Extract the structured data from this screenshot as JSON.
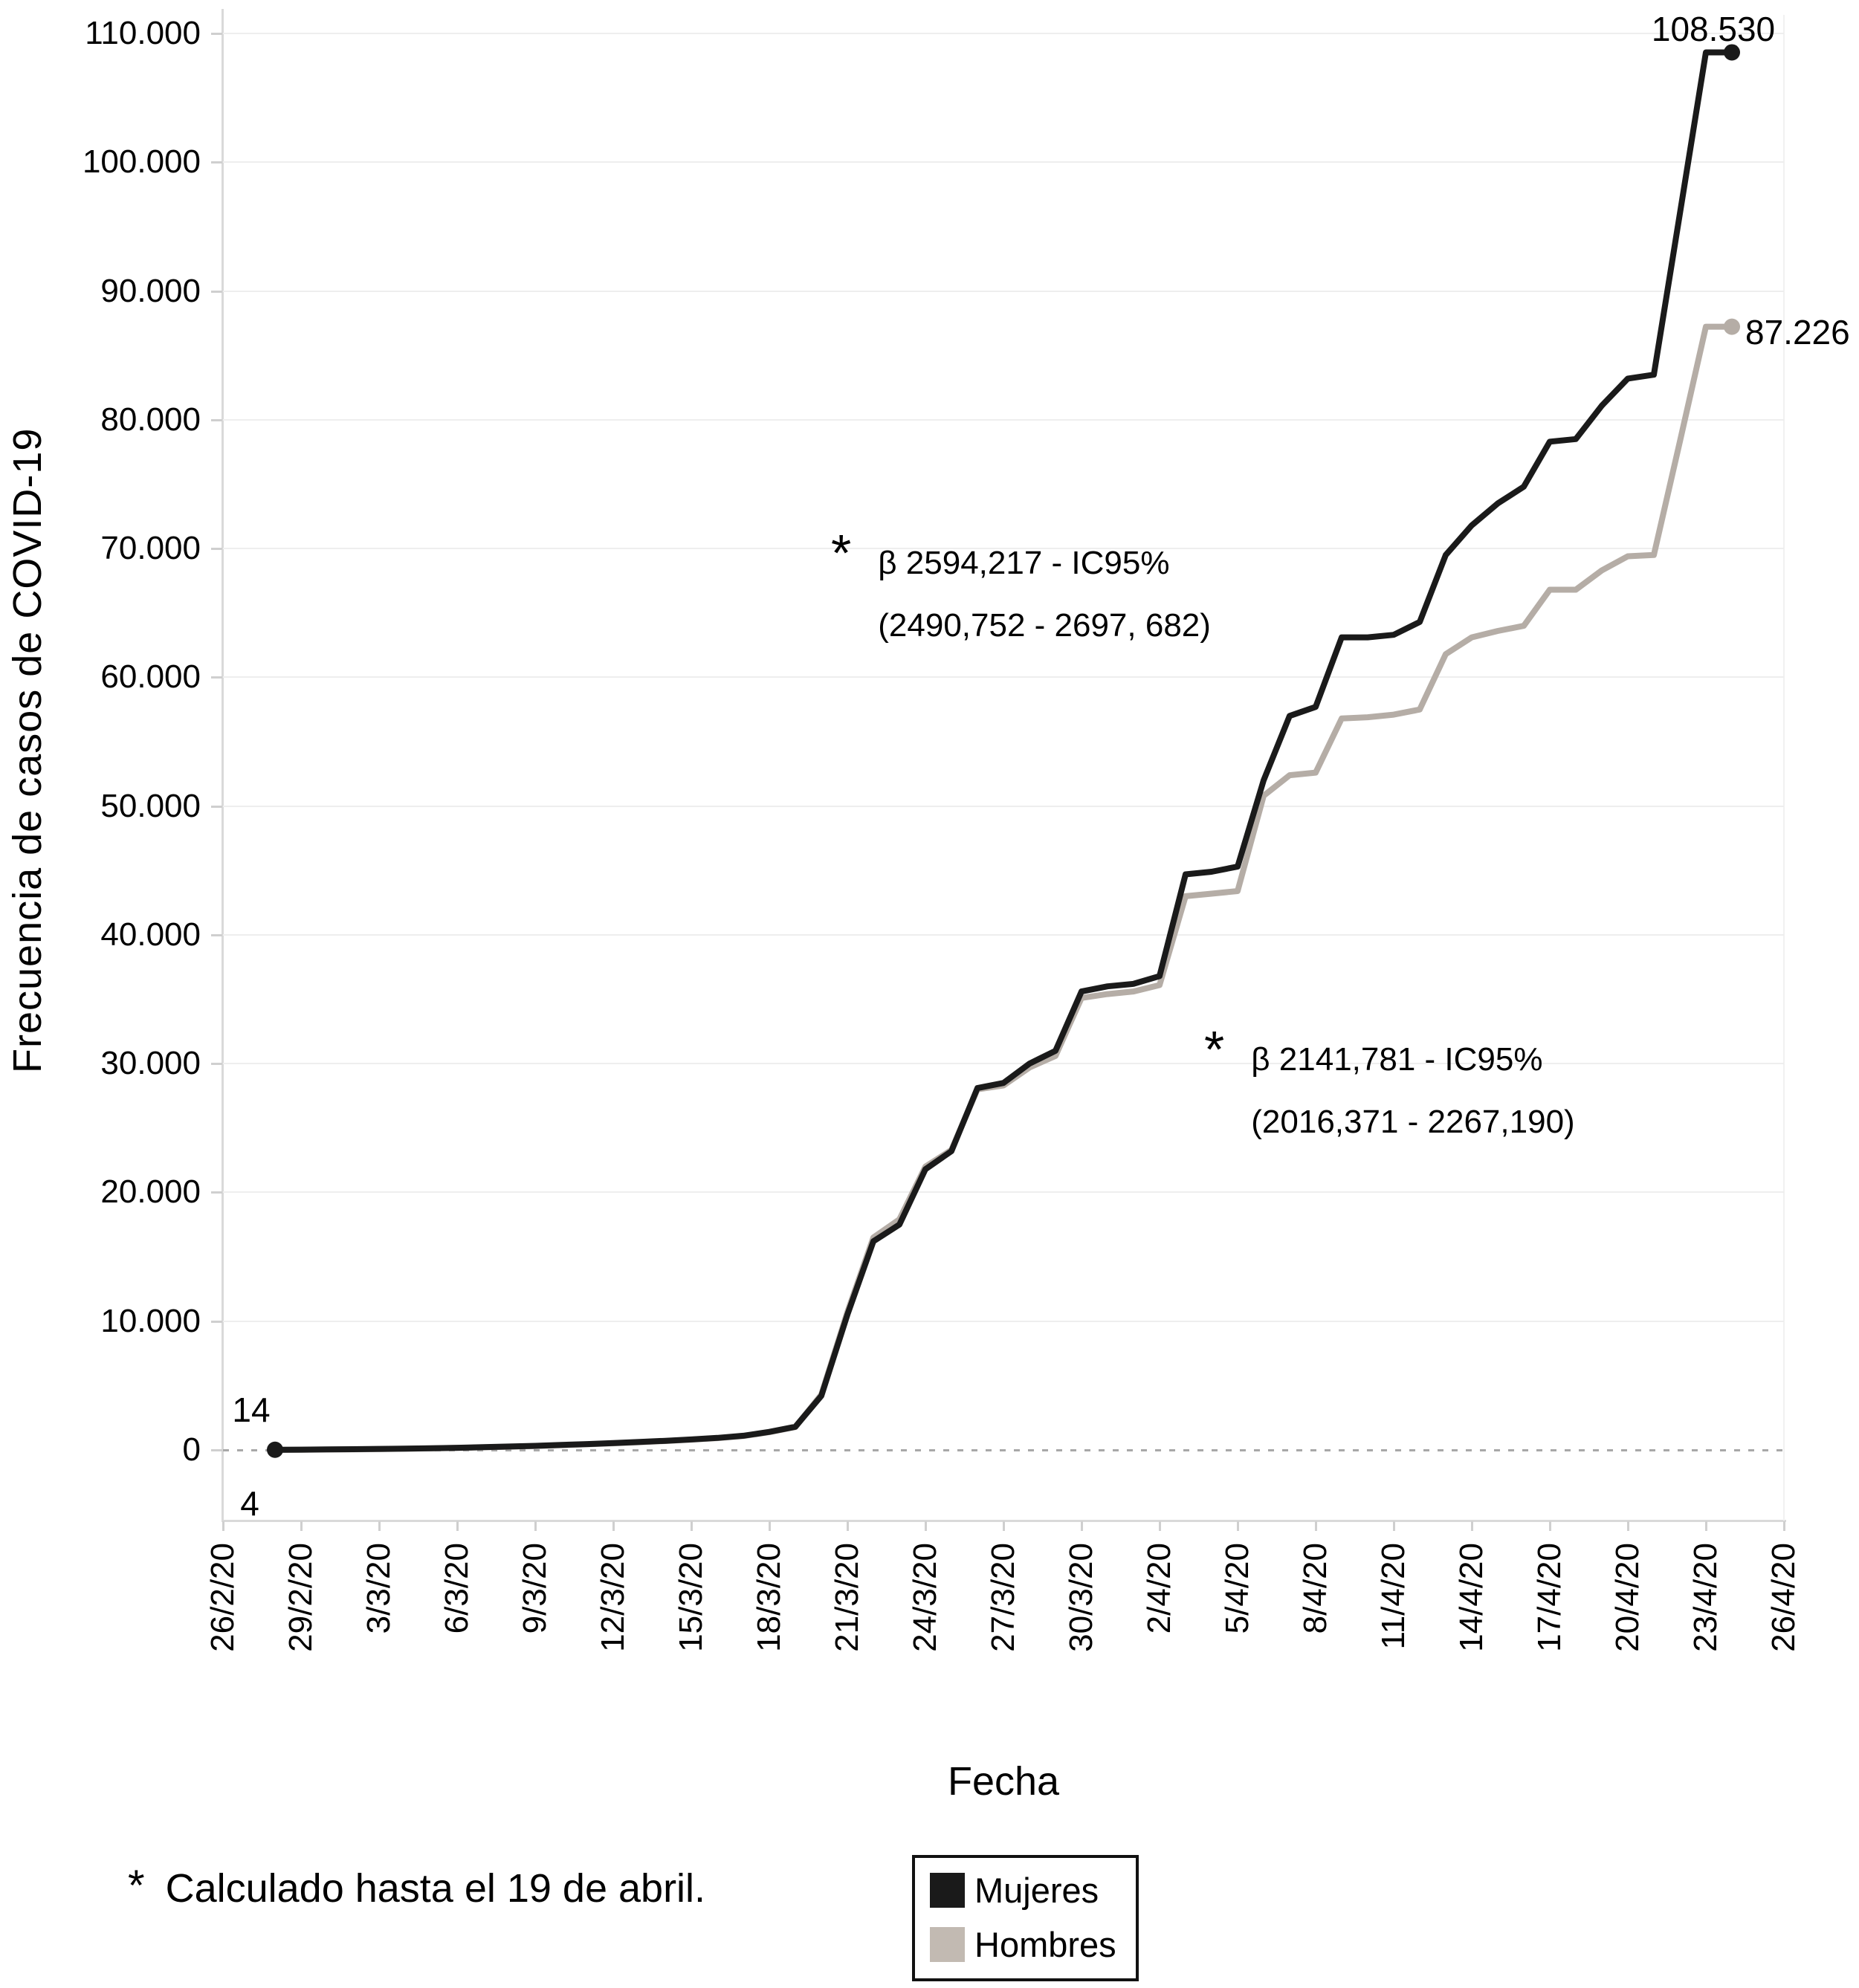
{
  "figure": {
    "annotations": [
      {
        "symbol": "*",
        "line1": "β 2594,217 - IC95%",
        "line2": "(2490,752 - 2697, 682)"
      },
      {
        "symbol": "*",
        "line1": "β 2141,781 - IC95%",
        "line2": "(2016,371 - 2267,190)"
      }
    ],
    "footnote_symbol": "*",
    "footnote_text": "Calculado hasta el 19 de abril."
  },
  "legend": {
    "items": [
      {
        "label": "Mujeres",
        "color": "#1a1a1a"
      },
      {
        "label": "Hombres",
        "color": "#c2bab2"
      }
    ]
  },
  "chart_data": {
    "type": "line",
    "title": "",
    "xlabel": "Fecha",
    "ylabel": "Frecuencia de casos de COVID-19",
    "ylim": [
      0,
      110000
    ],
    "grid": "horizontal",
    "legend_position": "bottom",
    "yticks": [
      0,
      10000,
      20000,
      30000,
      40000,
      50000,
      60000,
      70000,
      80000,
      90000,
      100000,
      110000
    ],
    "ytick_labels": [
      "0",
      "10.000",
      "20.000",
      "30.000",
      "40.000",
      "50.000",
      "60.000",
      "70.000",
      "80.000",
      "90.000",
      "100.000",
      "110.000"
    ],
    "xticks": [
      "26/2/20",
      "29/2/20",
      "3/3/20",
      "6/3/20",
      "9/3/20",
      "12/3/20",
      "15/3/20",
      "18/3/20",
      "21/3/20",
      "24/3/20",
      "27/3/20",
      "30/3/20",
      "2/4/20",
      "5/4/20",
      "8/4/20",
      "11/4/20",
      "14/4/20",
      "17/4/20",
      "20/4/20",
      "23/4/20",
      "26/4/20"
    ],
    "x": [
      "28/2/20",
      "29/2/20",
      "1/3/20",
      "2/3/20",
      "3/3/20",
      "4/3/20",
      "5/3/20",
      "6/3/20",
      "7/3/20",
      "8/3/20",
      "9/3/20",
      "10/3/20",
      "11/3/20",
      "12/3/20",
      "13/3/20",
      "14/3/20",
      "15/3/20",
      "16/3/20",
      "17/3/20",
      "18/3/20",
      "19/3/20",
      "20/3/20",
      "21/3/20",
      "22/3/20",
      "23/3/20",
      "24/3/20",
      "25/3/20",
      "26/3/20",
      "27/3/20",
      "28/3/20",
      "29/3/20",
      "30/3/20",
      "31/3/20",
      "1/4/20",
      "2/4/20",
      "3/4/20",
      "4/4/20",
      "5/4/20",
      "6/4/20",
      "7/4/20",
      "8/4/20",
      "9/4/20",
      "10/4/20",
      "11/4/20",
      "12/4/20",
      "13/4/20",
      "14/4/20",
      "15/4/20",
      "16/4/20",
      "17/4/20",
      "18/4/20",
      "19/4/20",
      "20/4/20",
      "21/4/20",
      "22/4/20",
      "23/4/20",
      "24/4/20"
    ],
    "series": [
      {
        "name": "Mujeres",
        "color": "#1a1a1a",
        "values": [
          14,
          25,
          40,
          58,
          80,
          105,
          135,
          170,
          215,
          265,
          320,
          385,
          455,
          530,
          615,
          710,
          815,
          935,
          1100,
          1400,
          1800,
          4200,
          10500,
          16200,
          17500,
          21800,
          23200,
          28100,
          28500,
          30000,
          31000,
          35600,
          36000,
          36200,
          36800,
          44700,
          44900,
          45300,
          52000,
          57000,
          57700,
          63100,
          63100,
          63300,
          64300,
          69500,
          71800,
          73500,
          74800,
          78300,
          78500,
          81100,
          83200,
          83500,
          96000,
          108530,
          108530
        ]
      },
      {
        "name": "Hombres",
        "color": "#b5ada6",
        "values": [
          4,
          15,
          28,
          45,
          65,
          90,
          120,
          155,
          200,
          250,
          305,
          370,
          440,
          515,
          600,
          695,
          800,
          920,
          1080,
          1380,
          1780,
          4300,
          10700,
          16500,
          17900,
          22000,
          23300,
          28000,
          28300,
          29700,
          30600,
          35100,
          35400,
          35600,
          36100,
          43000,
          43200,
          43400,
          50800,
          52400,
          52600,
          56800,
          56900,
          57100,
          57500,
          61800,
          63100,
          63600,
          64000,
          66800,
          66800,
          68300,
          69400,
          69500,
          78300,
          87226,
          87226
        ]
      }
    ],
    "point_labels": {
      "start_mujeres": "14",
      "start_hombres": "4",
      "end_mujeres": "108.530",
      "end_hombres": "87.226"
    }
  }
}
